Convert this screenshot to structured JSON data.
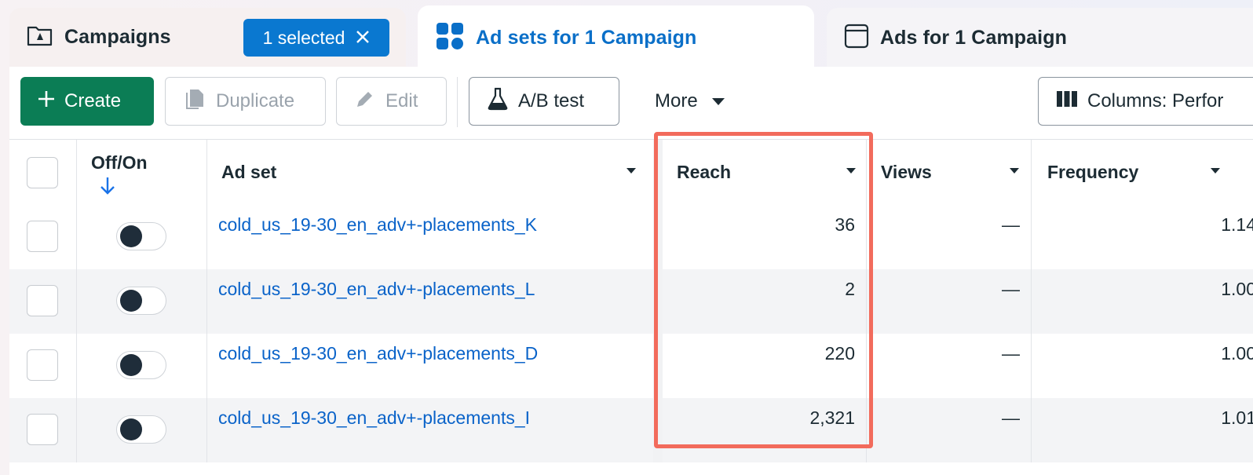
{
  "tabs": {
    "campaigns": {
      "label": "Campaigns",
      "badge": "1 selected"
    },
    "adsets": {
      "label": "Ad sets for 1 Campaign"
    },
    "ads": {
      "label": "Ads for 1 Campaign"
    }
  },
  "toolbar": {
    "create": "Create",
    "duplicate": "Duplicate",
    "edit": "Edit",
    "ab_test": "A/B test",
    "more": "More",
    "columns": "Columns: Perfor"
  },
  "table": {
    "headers": {
      "offon": "Off/On",
      "adset": "Ad set",
      "reach": "Reach",
      "views": "Views",
      "frequency": "Frequency"
    },
    "rows": [
      {
        "name": "cold_us_19-30_en_adv+-placements_K",
        "reach": "36",
        "views": "—",
        "frequency": "1.14"
      },
      {
        "name": "cold_us_19-30_en_adv+-placements_L",
        "reach": "2",
        "views": "—",
        "frequency": "1.00"
      },
      {
        "name": "cold_us_19-30_en_adv+-placements_D",
        "reach": "220",
        "views": "—",
        "frequency": "1.00"
      },
      {
        "name": "cold_us_19-30_en_adv+-placements_I",
        "reach": "2,321",
        "views": "—",
        "frequency": "1.01"
      }
    ]
  },
  "colors": {
    "accent": "#0a78d0",
    "create": "#0b7d55",
    "highlight": "#f26b5c",
    "link": "#0a63c9"
  }
}
